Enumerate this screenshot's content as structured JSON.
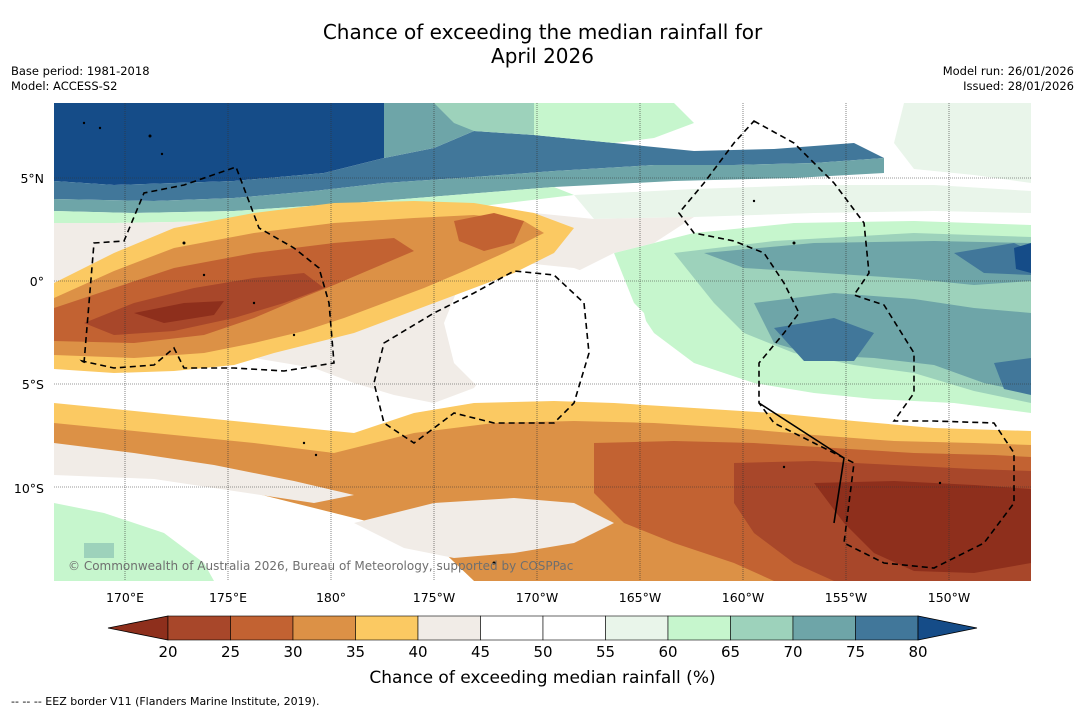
{
  "title_line1": "Chance of exceeding the median rainfall for",
  "title_line2": "April 2026",
  "meta_left": {
    "base_period": "Base period: 1981-2018",
    "model": "Model: ACCESS-S2"
  },
  "meta_right": {
    "model_run": "Model run: 26/01/2026",
    "issued": "Issued: 28/01/2026"
  },
  "map": {
    "lat_labels": [
      "5°N",
      "0°",
      "5°S",
      "10°S"
    ],
    "lon_labels": [
      "170°E",
      "175°E",
      "180°",
      "175°W",
      "170°W",
      "165°W",
      "160°W",
      "155°W",
      "150°W"
    ],
    "copyright": "© Commonwealth of Australia 2026, Bureau of Meteorology, supported by COSPPac"
  },
  "colorbar": {
    "ticks": [
      "20",
      "25",
      "30",
      "35",
      "40",
      "45",
      "50",
      "55",
      "60",
      "65",
      "70",
      "75",
      "80"
    ],
    "colors": {
      "lt20": "#8e2f1c",
      "20-25": "#a8472a",
      "25-30": "#c26232",
      "30-35": "#dc9146",
      "35-40": "#fbc962",
      "40-45": "#f1ece7",
      "45-50": "#ffffff",
      "50-55": "#ffffff",
      "55-60": "#e9f5ea",
      "60-65": "#c6f6cd",
      "65-70": "#9dd2bb",
      "70-75": "#6ea5a8",
      "75-80": "#41779a",
      "gt80": "#154c88"
    },
    "label": "Chance of exceeding median rainfall (%)"
  },
  "footnote": "--  --  -- EEZ border V11 (Flanders Marine Institute, 2019)."
}
